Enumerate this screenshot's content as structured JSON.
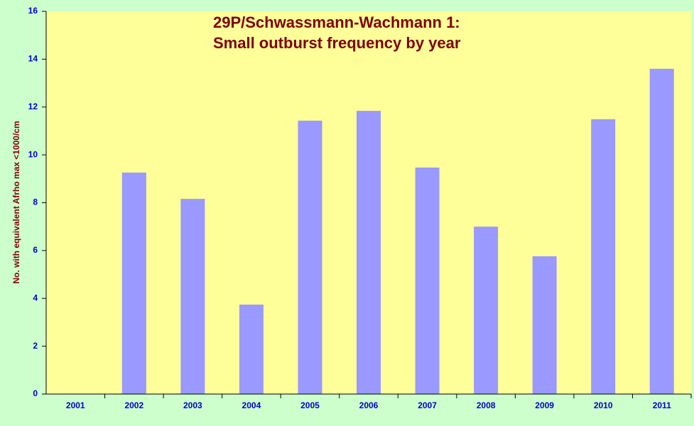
{
  "chart_data": {
    "type": "bar",
    "title": "29P/Schwassmann-Wachmann 1:",
    "subtitle": "Small outburst frequency by year",
    "y_label": "No. with equivalent Afrho max <1000/cm",
    "categories": [
      "2001",
      "2002",
      "2003",
      "2004",
      "2005",
      "2006",
      "2007",
      "2008",
      "2009",
      "2010",
      "2011"
    ],
    "values": [
      0,
      9.26,
      8.16,
      3.74,
      11.43,
      11.84,
      9.47,
      7.0,
      5.76,
      11.49,
      13.6
    ],
    "color": "#9999ff",
    "ylim": [
      0,
      16
    ],
    "yticks": [
      0,
      2,
      4,
      6,
      8,
      10,
      12,
      14,
      16
    ],
    "grid": false
  }
}
